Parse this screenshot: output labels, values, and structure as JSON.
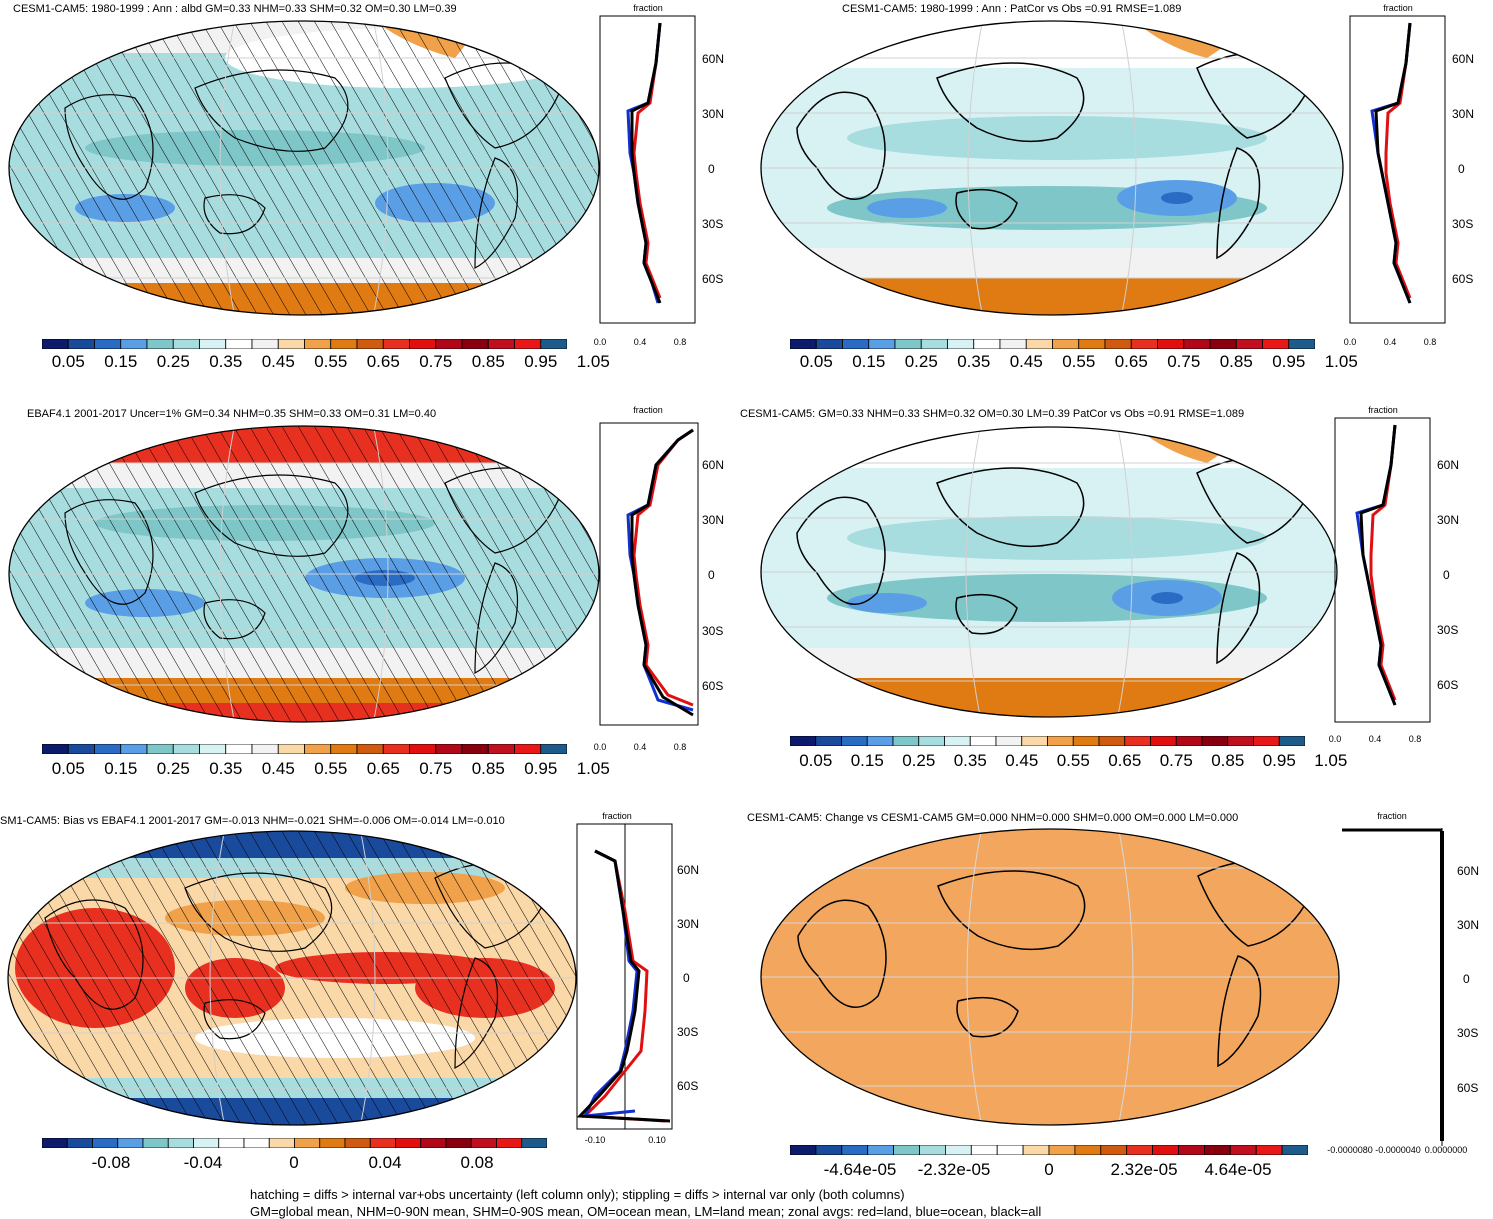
{
  "panels": [
    {
      "title": "CESM1-CAM5: 1980-1999 : Ann : albd GM=0.33 NHM=0.33 SHM=0.32 OM=0.30 LM=0.39",
      "zonal_header": "fraction",
      "lat_labels": [
        "60N",
        "30N",
        "0",
        "30S",
        "60S"
      ],
      "x_labels": [
        "0.0",
        "0.4",
        "0.8"
      ],
      "cb_labels": [
        "0.05",
        "0.15",
        "0.25",
        "0.35",
        "0.45",
        "0.55",
        "0.65",
        "0.75",
        "0.85",
        "0.95",
        "1.05"
      ]
    },
    {
      "title": "CESM1-CAM5: 1980-1999 : Ann : PatCor vs Obs =0.91 RMSE=1.089",
      "zonal_header": "fraction",
      "lat_labels": [
        "60N",
        "30N",
        "0",
        "30S",
        "60S"
      ],
      "x_labels": [
        "0.0",
        "0.4",
        "0.8"
      ],
      "cb_labels": [
        "0.05",
        "0.15",
        "0.25",
        "0.35",
        "0.45",
        "0.55",
        "0.65",
        "0.75",
        "0.85",
        "0.95",
        "1.05"
      ]
    },
    {
      "title": "EBAF4.1 2001-2017 Uncer=1% GM=0.34 NHM=0.35 SHM=0.33 OM=0.31 LM=0.40",
      "zonal_header": "fraction",
      "lat_labels": [
        "60N",
        "30N",
        "0",
        "30S",
        "60S"
      ],
      "x_labels": [
        "0.0",
        "0.4",
        "0.8"
      ],
      "cb_labels": [
        "0.05",
        "0.15",
        "0.25",
        "0.35",
        "0.45",
        "0.55",
        "0.65",
        "0.75",
        "0.85",
        "0.95",
        "1.05"
      ]
    },
    {
      "title": "CESM1-CAM5: GM=0.33 NHM=0.33 SHM=0.32 OM=0.30 LM=0.39 PatCor vs Obs =0.91 RMSE=1.089",
      "zonal_header": "fraction",
      "lat_labels": [
        "60N",
        "30N",
        "0",
        "30S",
        "60S"
      ],
      "x_labels": [
        "0.0",
        "0.4",
        "0.8"
      ],
      "cb_labels": [
        "0.05",
        "0.15",
        "0.25",
        "0.35",
        "0.45",
        "0.55",
        "0.65",
        "0.75",
        "0.85",
        "0.95",
        "1.05"
      ]
    },
    {
      "title": "SM1-CAM5: Bias vs EBAF4.1 2001-2017 GM=-0.013 NHM=-0.021 SHM=-0.006 OM=-0.014 LM=-0.010",
      "zonal_header": "fraction",
      "lat_labels": [
        "60N",
        "30N",
        "0",
        "30S",
        "60S"
      ],
      "x_labels": [
        "-0.10",
        "0.10"
      ],
      "cb_labels": [
        "-0.08",
        "-0.04",
        "0",
        "0.04",
        "0.08"
      ]
    },
    {
      "title": "CESM1-CAM5: Change vs CESM1-CAM5 GM=0.000 NHM=0.000 SHM=0.000 OM=0.000 LM=0.000",
      "zonal_header": "fraction",
      "lat_labels": [
        "60N",
        "30N",
        "0",
        "30S",
        "60S"
      ],
      "x_labels": [
        "-0.0000080",
        "-0.0000040",
        "0.0000000"
      ],
      "cb_labels": [
        "-4.64e-05",
        "-2.32e-05",
        "0",
        "2.32e-05",
        "4.64e-05"
      ]
    }
  ],
  "colors": {
    "seq": [
      "#0c1b6b",
      "#1a4a9c",
      "#2a6cc4",
      "#5a9ee6",
      "#7fc6c8",
      "#a8dde0",
      "#d8f2f4",
      "#ffffff",
      "#f2f2f2",
      "#fbd8a8",
      "#f0a14a",
      "#e07a12",
      "#d05a10",
      "#e83020",
      "#e01010",
      "#b00818",
      "#880010",
      "#c01020",
      "#e81818",
      "#1e5a8a"
    ],
    "div": [
      "#0c1b6b",
      "#1a4a9c",
      "#2a6cc4",
      "#5a9ee6",
      "#7fc6c8",
      "#a8dde0",
      "#d8f2f4",
      "#ffffff",
      "#ffffff",
      "#fbd8a8",
      "#f0a14a",
      "#e07a12",
      "#d05a10",
      "#e83020",
      "#e01010",
      "#b00818",
      "#880010",
      "#c01020",
      "#e81818",
      "#1e5a8a"
    ],
    "line_land": "#e01010",
    "line_ocean": "#1030d0",
    "line_all": "#000000"
  },
  "footer": {
    "line1": "hatching = diffs > internal var+obs uncertainty (left column only); stippling = diffs > internal var only (both columns)",
    "line2": "GM=global mean, NHM=0-90N mean, SHM=0-90S mean, OM=ocean mean, LM=land mean; zonal avgs: red=land, blue=ocean, black=all"
  }
}
